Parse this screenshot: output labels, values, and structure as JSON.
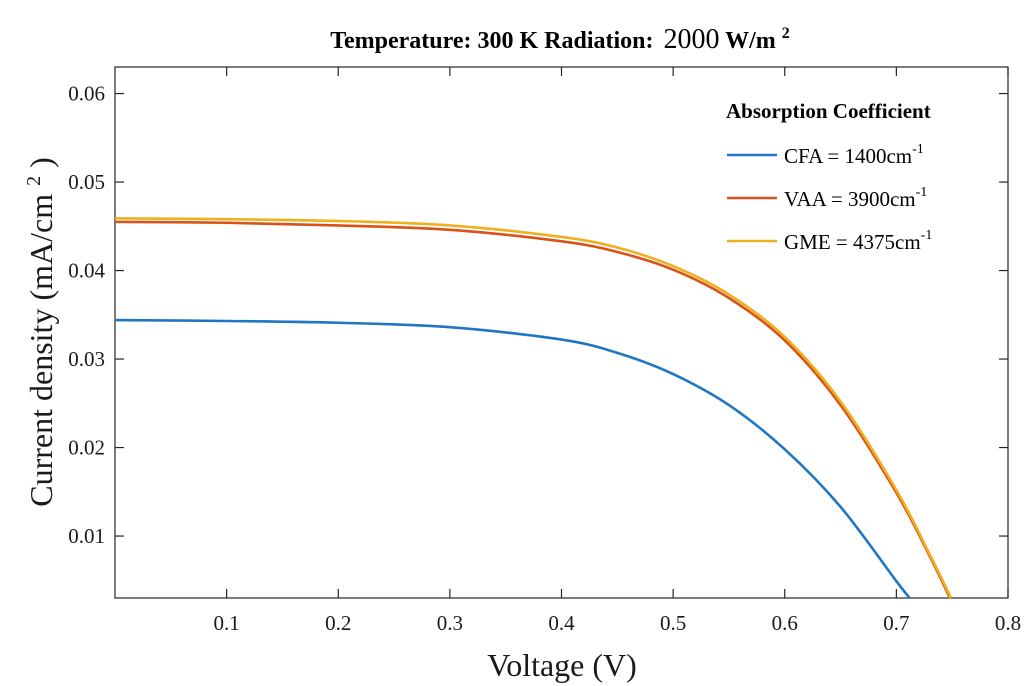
{
  "chart_data": {
    "type": "line",
    "title": {
      "prefix": "Temperature: 300 K Radiation:",
      "value": "2000",
      "unit": "W/m",
      "unit_sup": "2"
    },
    "xlabel": "Voltage (V)",
    "ylabel": {
      "main": "Current density (mA/cm",
      "sup": "2",
      "close": ")"
    },
    "xlim": [
      0,
      0.8
    ],
    "ylim": [
      0.003,
      0.063
    ],
    "xticks": [
      0.1,
      0.2,
      0.3,
      0.4,
      0.5,
      0.6,
      0.7,
      0.8
    ],
    "xtick_labels": [
      "0.1",
      "0.2",
      "0.3",
      "0.4",
      "0.5",
      "0.6",
      "0.7",
      "0.8"
    ],
    "yticks": [
      0.01,
      0.02,
      0.03,
      0.04,
      0.05,
      0.06
    ],
    "ytick_labels": [
      "0.01",
      "0.02",
      "0.03",
      "0.04",
      "0.05",
      "0.06"
    ],
    "grid": false,
    "legend": {
      "title": "Absorption Coefficient",
      "placement": "top-right",
      "entries": [
        {
          "label": "CFA = 1400cm",
          "sup": "-1"
        },
        {
          "label": "VAA = 3900cm",
          "sup": "-1"
        },
        {
          "label": "GME = 4375cm",
          "sup": "-1"
        }
      ]
    },
    "series": [
      {
        "color": "#1f77c4",
        "points": [
          [
            0,
            0.0344
          ],
          [
            0.1,
            0.0343
          ],
          [
            0.2,
            0.0341
          ],
          [
            0.3,
            0.0336
          ],
          [
            0.4,
            0.0322
          ],
          [
            0.45,
            0.0307
          ],
          [
            0.5,
            0.0283
          ],
          [
            0.55,
            0.0248
          ],
          [
            0.6,
            0.0198
          ],
          [
            0.65,
            0.0133
          ],
          [
            0.7,
            0.0049
          ],
          [
            0.712,
            0.003
          ]
        ]
      },
      {
        "color": "#d95319",
        "points": [
          [
            0,
            0.0455
          ],
          [
            0.1,
            0.0454
          ],
          [
            0.2,
            0.0451
          ],
          [
            0.3,
            0.0446
          ],
          [
            0.4,
            0.0433
          ],
          [
            0.45,
            0.0421
          ],
          [
            0.5,
            0.0401
          ],
          [
            0.55,
            0.0369
          ],
          [
            0.6,
            0.0321
          ],
          [
            0.65,
            0.0248
          ],
          [
            0.7,
            0.0149
          ],
          [
            0.73,
            0.0077
          ],
          [
            0.748,
            0.003
          ]
        ]
      },
      {
        "color": "#edb120",
        "points": [
          [
            0,
            0.0459
          ],
          [
            0.1,
            0.0458
          ],
          [
            0.2,
            0.0456
          ],
          [
            0.3,
            0.0451
          ],
          [
            0.4,
            0.0438
          ],
          [
            0.45,
            0.0426
          ],
          [
            0.5,
            0.0405
          ],
          [
            0.55,
            0.0373
          ],
          [
            0.6,
            0.0325
          ],
          [
            0.65,
            0.0252
          ],
          [
            0.7,
            0.0152
          ],
          [
            0.73,
            0.0079
          ],
          [
            0.749,
            0.003
          ]
        ]
      }
    ]
  }
}
